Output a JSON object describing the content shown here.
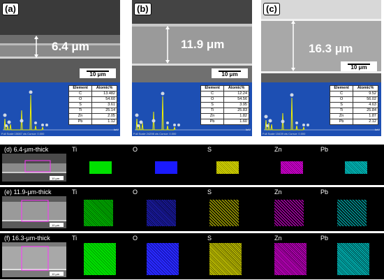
{
  "top_panels": [
    {
      "label": "(a)",
      "thickness": "6.4 μm",
      "scale": "10 μm",
      "footer": "Full Scale 15087 cts Cursor: 0.000",
      "unit": "keV",
      "table": {
        "headers": [
          "Element",
          "Atomic%"
        ],
        "rows": [
          [
            "C",
            "13.482"
          ],
          [
            "O",
            "54.60"
          ],
          [
            "S",
            "3.61"
          ],
          [
            "Ti",
            "25.14"
          ],
          [
            "Zn",
            "2.05"
          ],
          [
            "Pb",
            "1.12"
          ]
        ]
      }
    },
    {
      "label": "(b)",
      "thickness": "11.9 μm",
      "scale": "10 μm",
      "footer": "Full Scale 24298 cts Cursor: 0.000",
      "unit": "keV",
      "table": {
        "headers": [
          "Element",
          "Atomic%"
        ],
        "rows": [
          [
            "C",
            "12.24"
          ],
          [
            "O",
            "54.56"
          ],
          [
            "S",
            "3.95"
          ],
          [
            "Ti",
            "25.83"
          ],
          [
            "Zn",
            "1.82"
          ],
          [
            "Pb",
            "1.60"
          ]
        ]
      }
    },
    {
      "label": "(c)",
      "thickness": "16.3 μm",
      "scale": "10 μm",
      "footer": "Full Scale 15439 cts Cursor: 0.000",
      "unit": "keV",
      "table": {
        "headers": [
          "Element",
          "Atomic%"
        ],
        "rows": [
          [
            "C",
            "9.52"
          ],
          [
            "O",
            "56.02"
          ],
          [
            "S",
            "4.63"
          ],
          [
            "Ti",
            "25.84"
          ],
          [
            "Zn",
            "1.87"
          ],
          [
            "Pb",
            "2.12"
          ]
        ]
      }
    }
  ],
  "mapping_rows": [
    {
      "label": "(d) 6.4-μm-thick",
      "scale": "10 μm"
    },
    {
      "label": "(e) 11.9-μm-thick",
      "scale": "10 μm"
    },
    {
      "label": "(f) 16.3-μm-thick",
      "scale": "10 μm"
    }
  ],
  "elements": [
    "Ti",
    "O",
    "S",
    "Zn",
    "Pb"
  ],
  "element_colors": {
    "Ti": "#00e000",
    "O": "#1a1aff",
    "S": "#e6e600",
    "Zn": "#e600e6",
    "Pb": "#00d4d4"
  },
  "axis_ticks": [
    "0",
    "2",
    "4",
    "6",
    "8",
    "10",
    "12",
    "14",
    "16",
    "18",
    "20"
  ]
}
